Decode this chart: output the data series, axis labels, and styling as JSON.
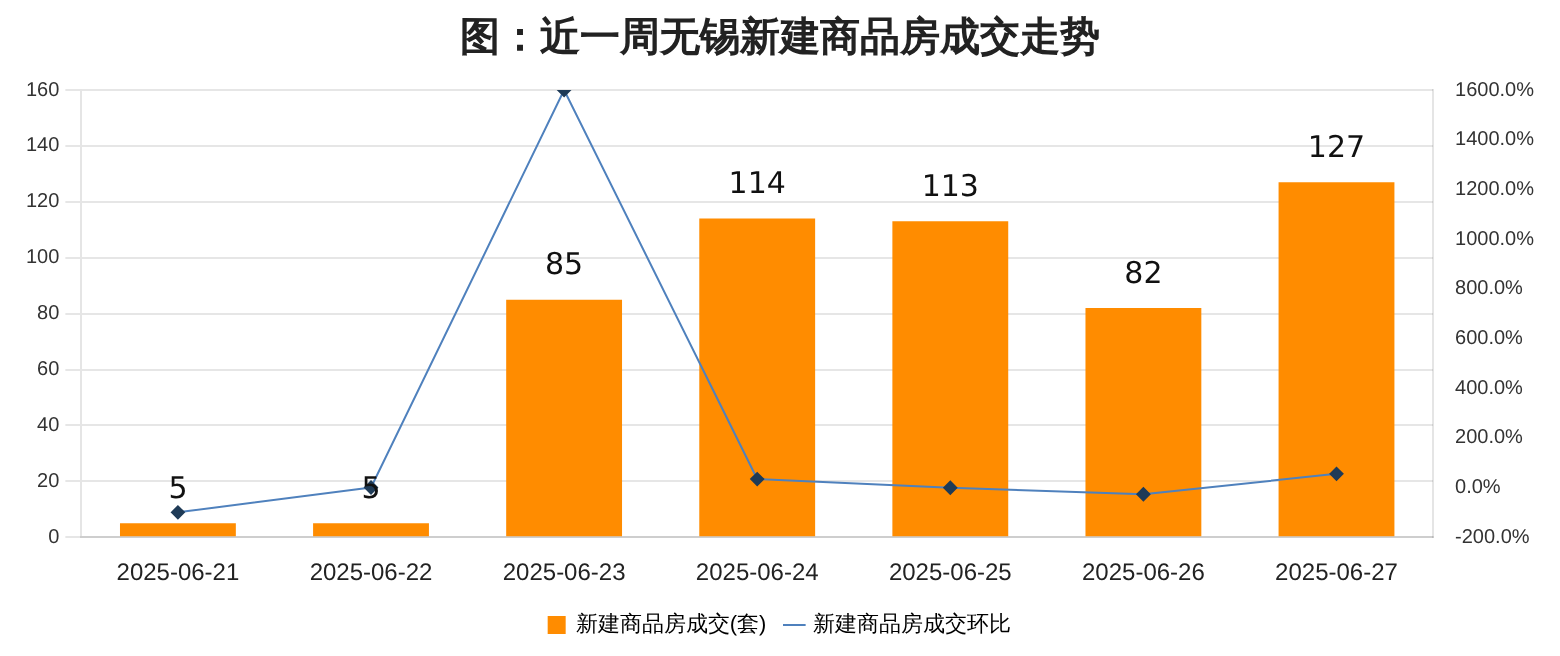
{
  "chart_data": {
    "type": "bar",
    "title": "图：近一周无锡新建商品房成交走势",
    "categories": [
      "2025-06-21",
      "2025-06-22",
      "2025-06-23",
      "2025-06-24",
      "2025-06-25",
      "2025-06-26",
      "2025-06-27"
    ],
    "series": [
      {
        "name": "新建商品房成交(套)",
        "color": "#ff8c00",
        "values": [
          5,
          5,
          85,
          114,
          113,
          82,
          127
        ],
        "data_labels": true
      },
      {
        "name": "新建商品房成交环比",
        "type": "line",
        "axis": "y2",
        "color": "#4f81bd",
        "marker": "diamond",
        "values": [
          -100,
          0,
          1600,
          34,
          -1,
          -27,
          55
        ]
      }
    ],
    "ylim": [
      0,
      160
    ],
    "yticks": [
      0,
      20,
      40,
      60,
      80,
      100,
      120,
      140,
      160
    ],
    "y2lim": [
      -200,
      1600
    ],
    "y2ticks": [
      {
        "value": -200,
        "label": "-200.0%"
      },
      {
        "value": 0,
        "label": "0.0%"
      },
      {
        "value": 200,
        "label": "200.0%"
      },
      {
        "value": 400,
        "label": "400.0%"
      },
      {
        "value": 600,
        "label": "600.0%"
      },
      {
        "value": 800,
        "label": "800.0%"
      },
      {
        "value": 1000,
        "label": "1000.0%"
      },
      {
        "value": 1200,
        "label": "1200.0%"
      },
      {
        "value": 1400,
        "label": "1400.0%"
      },
      {
        "value": 1600,
        "label": "1600.0%"
      }
    ],
    "grid": "y",
    "legend": "bottom"
  }
}
